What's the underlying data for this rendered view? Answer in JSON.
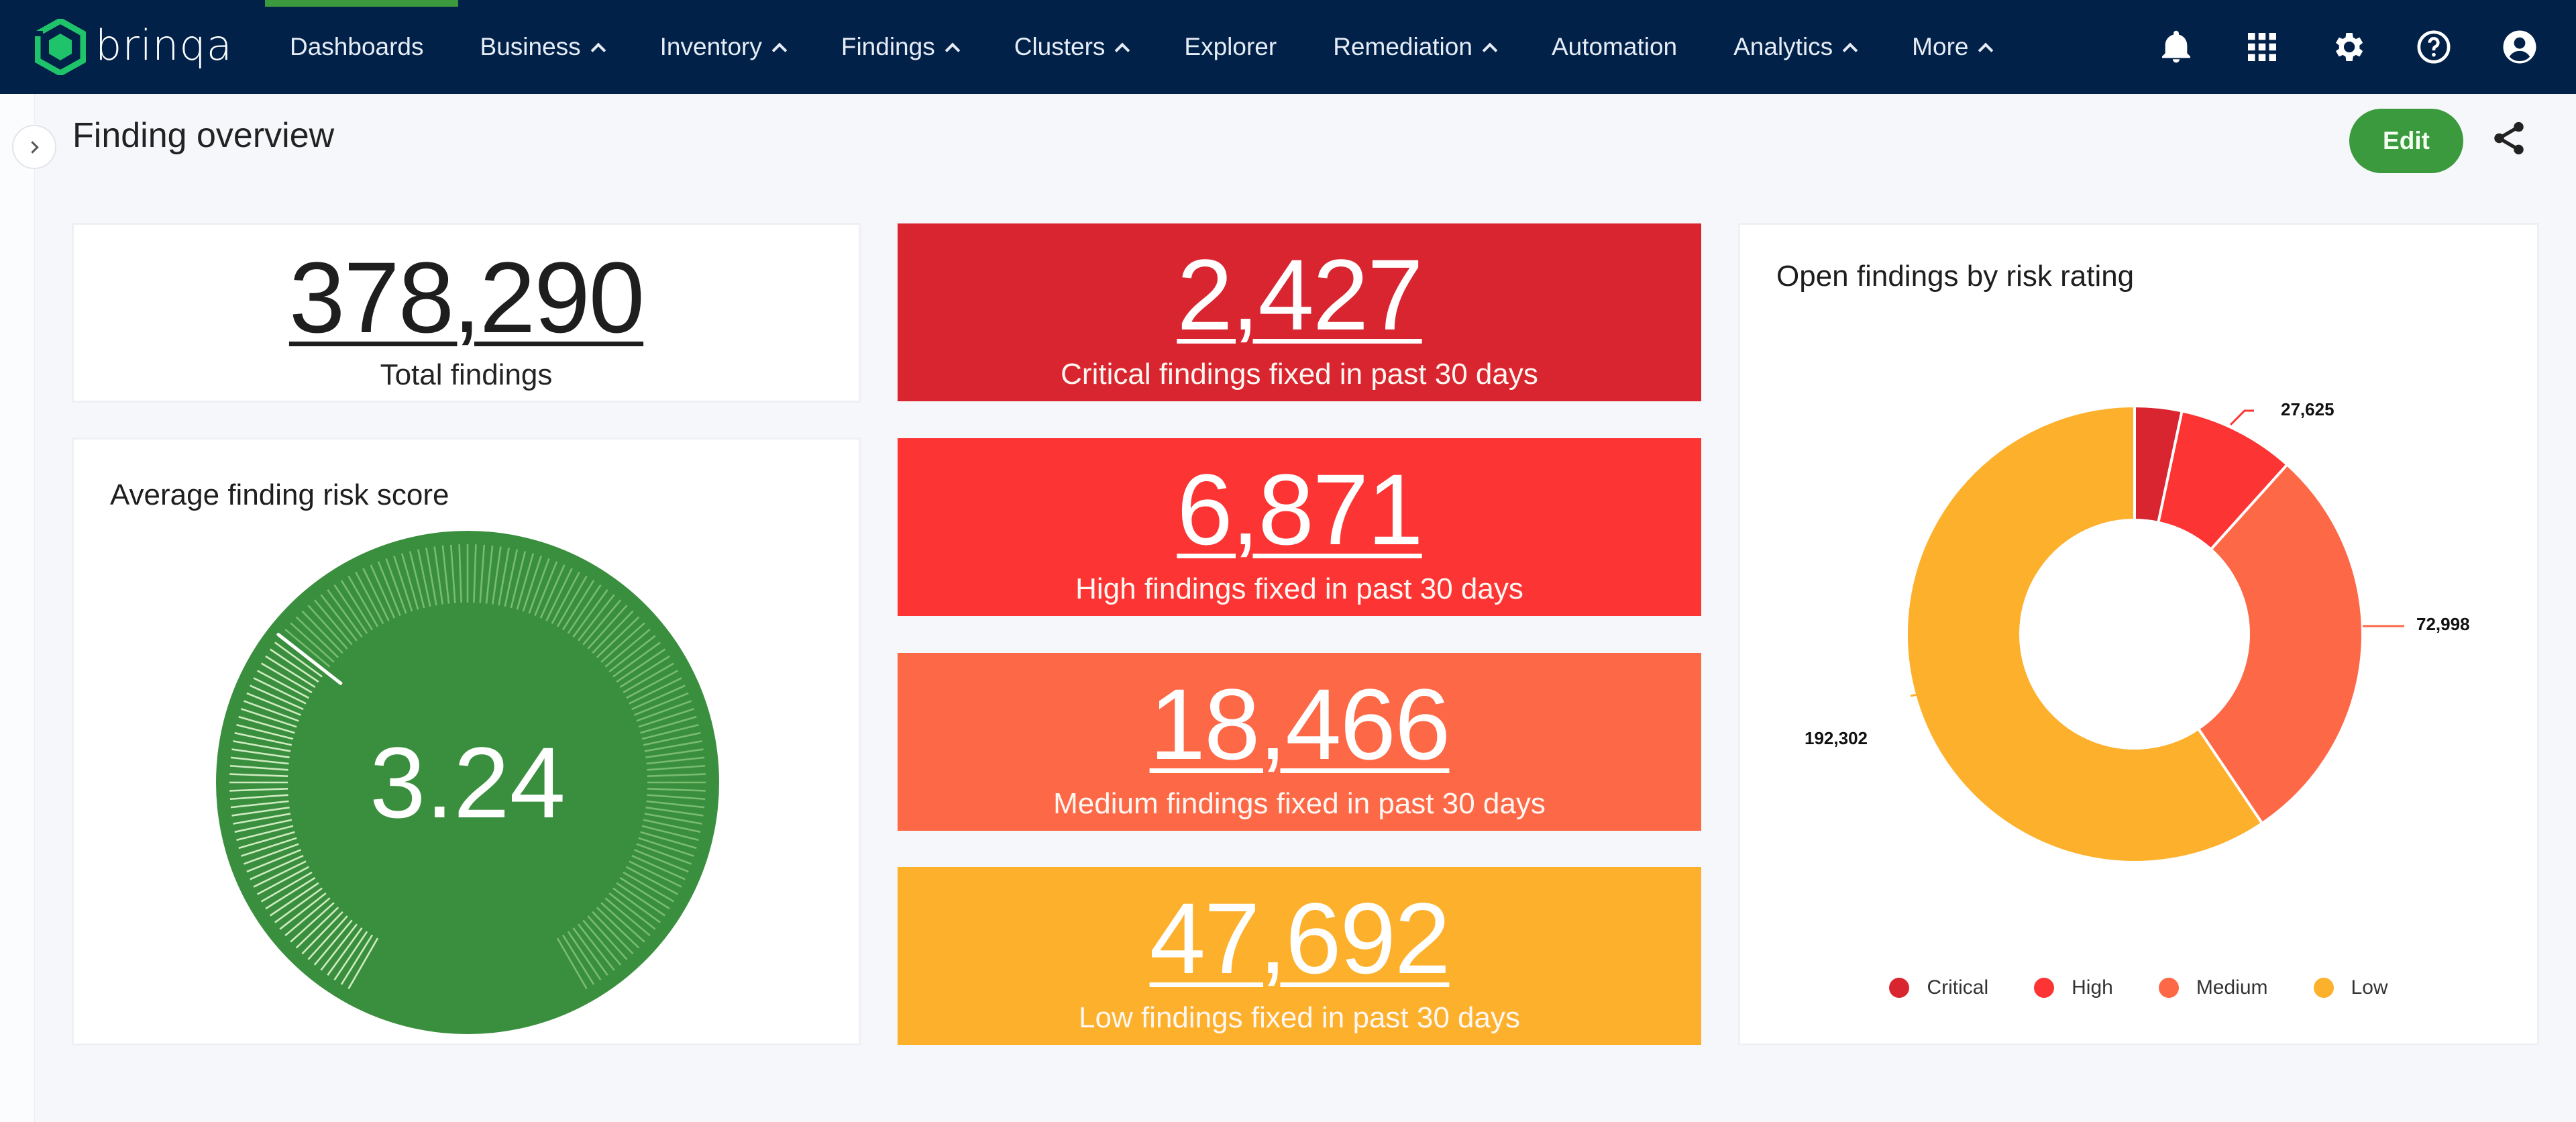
{
  "brand": {
    "name": "brinqa",
    "logo_color": "#1fc46a"
  },
  "nav": {
    "active_index": 0,
    "items": [
      {
        "label": "Dashboards",
        "has_menu": false
      },
      {
        "label": "Business",
        "has_menu": true
      },
      {
        "label": "Inventory",
        "has_menu": true
      },
      {
        "label": "Findings",
        "has_menu": true
      },
      {
        "label": "Clusters",
        "has_menu": true
      },
      {
        "label": "Explorer",
        "has_menu": false
      },
      {
        "label": "Remediation",
        "has_menu": true
      },
      {
        "label": "Automation",
        "has_menu": false
      },
      {
        "label": "Analytics",
        "has_menu": true
      },
      {
        "label": "More",
        "has_menu": true
      }
    ],
    "icons": [
      "bell-icon",
      "apps-grid-icon",
      "gear-icon",
      "help-icon",
      "account-icon"
    ]
  },
  "header": {
    "title": "Finding overview",
    "edit_label": "Edit",
    "share_icon": "share-icon",
    "sidebar_toggle_icon": "chevron-right-icon"
  },
  "total": {
    "value": "378,290",
    "label": "Total findings"
  },
  "gauge": {
    "title": "Average finding risk score",
    "value": "3.24",
    "color": "#3a8f3e"
  },
  "fixed_cards": [
    {
      "value": "2,427",
      "label": "Critical findings fixed in past 30 days",
      "color": "#d9252f"
    },
    {
      "value": "6,871",
      "label": "High findings fixed in past 30 days",
      "color": "#fd3434"
    },
    {
      "value": "18,466",
      "label": "Medium findings fixed in past 30 days",
      "color": "#fd6847"
    },
    {
      "value": "47,692",
      "label": "Low findings fixed in past 30 days",
      "color": "#fdb02b"
    }
  ],
  "chart_data": {
    "type": "pie",
    "variant": "donut",
    "title": "Open findings by risk rating",
    "categories": [
      "Critical",
      "High",
      "Medium",
      "Low"
    ],
    "values": [
      null,
      27625,
      72998,
      192302
    ],
    "data_labels": [
      "",
      "27,625",
      "72,998",
      "192,302"
    ],
    "colors": [
      "#d9252f",
      "#fd3434",
      "#fd6847",
      "#fdb02b"
    ],
    "legend_position": "bottom"
  }
}
